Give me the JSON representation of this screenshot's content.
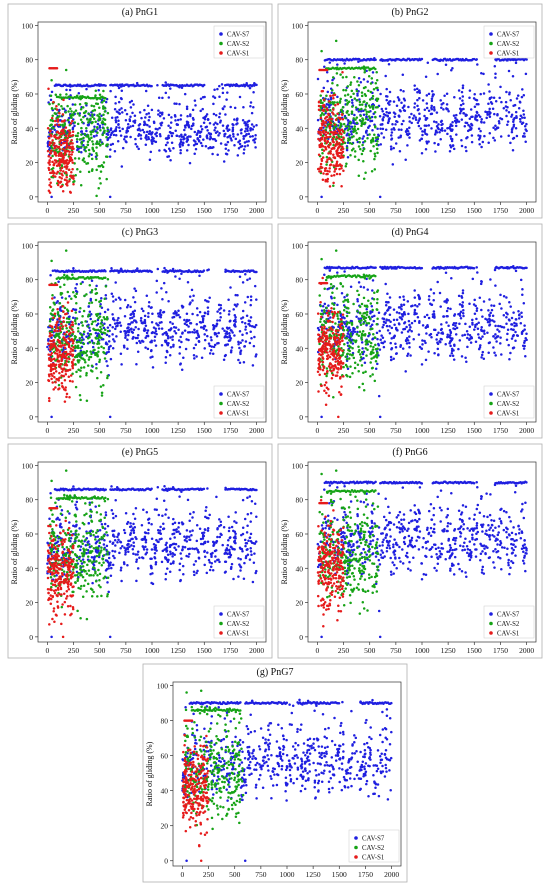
{
  "figure": {
    "panels": [
      {
        "title": "(a) PnG1",
        "bands": {
          "S7": 65,
          "S2": 58,
          "S1": 75
        },
        "mean": {
          "S7": 38,
          "S2": 32,
          "S1": 24
        },
        "spread": {
          "S7": 9,
          "S2": 12,
          "S1": 12
        },
        "zeros": [
          [
            40,
            0
          ],
          [
            600,
            0
          ]
        ]
      },
      {
        "title": "(b) PnG2",
        "bands": {
          "S7": 80,
          "S2": 75,
          "S1": 74
        },
        "mean": {
          "S7": 45,
          "S2": 40,
          "S1": 33
        },
        "spread": {
          "S7": 11,
          "S2": 12,
          "S1": 12
        },
        "zeros": [
          [
            40,
            0
          ],
          [
            600,
            0
          ]
        ]
      },
      {
        "title": "(c) PnG3",
        "bands": {
          "S7": 85,
          "S2": 81,
          "S1": 77
        },
        "mean": {
          "S7": 50,
          "S2": 43,
          "S1": 37
        },
        "spread": {
          "S7": 12,
          "S2": 12,
          "S1": 12
        },
        "zeros": [
          [
            40,
            0
          ],
          [
            600,
            0
          ]
        ]
      },
      {
        "title": "(d) PnG4",
        "bands": {
          "S7": 87,
          "S2": 82,
          "S1": 78
        },
        "mean": {
          "S7": 52,
          "S2": 45,
          "S1": 38
        },
        "spread": {
          "S7": 12,
          "S2": 12,
          "S1": 12
        },
        "zeros": [
          [
            40,
            0
          ],
          [
            200,
            0
          ],
          [
            600,
            0
          ]
        ]
      },
      {
        "title": "(e) PnG5",
        "bands": {
          "S7": 86,
          "S2": 81,
          "S1": 75
        },
        "mean": {
          "S7": 52,
          "S2": 44,
          "S1": 38
        },
        "spread": {
          "S7": 12,
          "S2": 12,
          "S1": 12
        },
        "zeros": [
          [
            40,
            0
          ],
          [
            150,
            0
          ],
          [
            600,
            0
          ]
        ]
      },
      {
        "title": "(f) PnG6",
        "bands": {
          "S7": 90,
          "S2": 85,
          "S1": 78
        },
        "mean": {
          "S7": 55,
          "S2": 46,
          "S1": 40
        },
        "spread": {
          "S7": 12,
          "S2": 12,
          "S1": 12
        },
        "zeros": [
          [
            40,
            0
          ],
          [
            600,
            0
          ]
        ]
      },
      {
        "title": "(g) PnG7",
        "bands": {
          "S7": 90,
          "S2": 86,
          "S1": 80
        },
        "mean": {
          "S7": 55,
          "S2": 47,
          "S1": 42
        },
        "spread": {
          "S7": 12,
          "S2": 12,
          "S1": 12
        },
        "zeros": [
          [
            40,
            0
          ],
          [
            180,
            0
          ],
          [
            600,
            0
          ]
        ]
      }
    ]
  },
  "chart_data": {
    "type": "scatter",
    "ylabel": "Ratio of gliding (%)",
    "xlabel": "",
    "xlim": [
      0,
      2000
    ],
    "ylim": [
      0,
      100
    ],
    "x_ticks": [
      "0",
      "250",
      "500",
      "750",
      "1000",
      "1250",
      "1500",
      "1750",
      "2000"
    ],
    "y_ticks": [
      "0",
      "20",
      "40",
      "60",
      "80",
      "100"
    ],
    "series": [
      {
        "name": "CAV-S7",
        "color": "#1f1fe0",
        "x_range": [
          0,
          2000
        ]
      },
      {
        "name": "CAV-S2",
        "color": "#16a316",
        "x_range": [
          0,
          600
        ]
      },
      {
        "name": "CAV-S1",
        "color": "#e61b1b",
        "x_range": [
          0,
          250
        ]
      }
    ],
    "legend_placement": [
      "top-right",
      "top-right",
      "bottom-right",
      "bottom-right",
      "bottom-right",
      "bottom-right",
      "bottom-right"
    ]
  }
}
